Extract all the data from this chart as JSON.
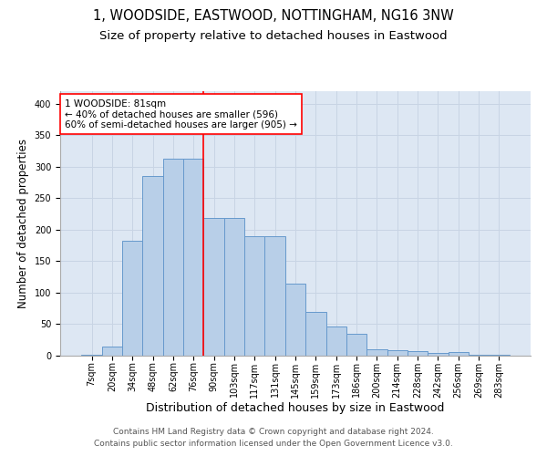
{
  "title": "1, WOODSIDE, EASTWOOD, NOTTINGHAM, NG16 3NW",
  "subtitle": "Size of property relative to detached houses in Eastwood",
  "xlabel": "Distribution of detached houses by size in Eastwood",
  "ylabel": "Number of detached properties",
  "categories": [
    "7sqm",
    "20sqm",
    "34sqm",
    "48sqm",
    "62sqm",
    "76sqm",
    "90sqm",
    "103sqm",
    "117sqm",
    "131sqm",
    "145sqm",
    "159sqm",
    "173sqm",
    "186sqm",
    "200sqm",
    "214sqm",
    "228sqm",
    "242sqm",
    "256sqm",
    "269sqm",
    "283sqm"
  ],
  "values": [
    2,
    15,
    183,
    285,
    313,
    313,
    218,
    218,
    190,
    190,
    115,
    70,
    46,
    35,
    10,
    9,
    7,
    5,
    6,
    2,
    1
  ],
  "bar_color": "#b8cfe8",
  "bar_edgecolor": "#6699cc",
  "bar_linewidth": 0.7,
  "grid_color": "#c8d4e4",
  "background_color": "#dde7f3",
  "vline_x": 5.5,
  "vline_color": "red",
  "vline_linewidth": 1.2,
  "annotation_text": "1 WOODSIDE: 81sqm\n← 40% of detached houses are smaller (596)\n60% of semi-detached houses are larger (905) →",
  "annotation_box_color": "white",
  "annotation_box_edgecolor": "red",
  "annotation_fontsize": 7.5,
  "title_fontsize": 10.5,
  "subtitle_fontsize": 9.5,
  "xlabel_fontsize": 9,
  "ylabel_fontsize": 8.5,
  "tick_fontsize": 7,
  "footer_line1": "Contains HM Land Registry data © Crown copyright and database right 2024.",
  "footer_line2": "Contains public sector information licensed under the Open Government Licence v3.0.",
  "footer_fontsize": 6.5,
  "ylim": [
    0,
    420
  ]
}
